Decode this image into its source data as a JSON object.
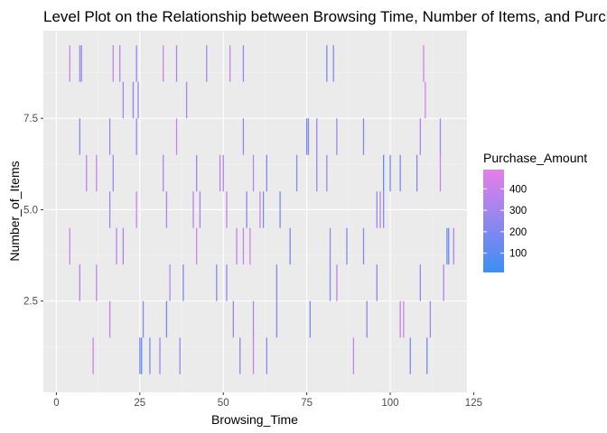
{
  "chart_data": {
    "type": "heatmap",
    "title": "Level Plot on the Relationship between Browsing Time, Number of Items, and Purchase Amount",
    "xlabel": "Browsing_Time",
    "ylabel": "Number_of_Items",
    "xlim": [
      -3.9,
      123
    ],
    "ylim": [
      0,
      9.9
    ],
    "xticks": [
      0,
      25,
      50,
      75,
      100,
      125
    ],
    "xtick_labels": [
      "0",
      "25",
      "50",
      "75",
      "100",
      "125"
    ],
    "yticks": [
      2.5,
      5.0,
      7.5
    ],
    "ytick_labels": [
      "2.5",
      "5.0",
      "7.5"
    ],
    "grid": true,
    "legend": {
      "title": "Purchase_Amount",
      "position": "right",
      "range": [
        10,
        490
      ],
      "ticks": [
        100,
        200,
        300,
        400
      ],
      "tick_labels": [
        "100",
        "200",
        "300",
        "400"
      ],
      "color_low": "#3b8ff5",
      "color_high": "#e67fe8"
    },
    "colors": {
      "panel_background": "#ebebeb",
      "grid_major": "#ffffff",
      "grid_minor": "#f3f3f3",
      "tick_text": "#4d4d4d"
    },
    "points": [
      [
        4,
        9,
        420
      ],
      [
        7,
        9,
        330
      ],
      [
        7.5,
        9,
        200
      ],
      [
        17,
        9,
        390
      ],
      [
        19,
        9,
        350
      ],
      [
        24,
        9,
        250
      ],
      [
        32,
        9,
        420
      ],
      [
        36,
        9,
        310
      ],
      [
        45,
        9,
        320
      ],
      [
        52,
        9,
        410
      ],
      [
        56,
        9,
        270
      ],
      [
        81,
        9,
        180
      ],
      [
        83,
        9,
        210
      ],
      [
        110,
        9,
        430
      ],
      [
        20,
        8,
        300
      ],
      [
        23,
        8,
        230
      ],
      [
        24.5,
        8,
        280
      ],
      [
        39,
        8,
        340
      ],
      [
        110.5,
        8,
        460
      ],
      [
        7,
        7,
        210
      ],
      [
        16,
        7,
        300
      ],
      [
        24,
        7,
        260
      ],
      [
        36,
        7,
        420
      ],
      [
        56,
        7,
        240
      ],
      [
        75,
        7,
        170
      ],
      [
        75.5,
        7,
        230
      ],
      [
        78,
        7,
        280
      ],
      [
        84,
        7,
        300
      ],
      [
        92,
        7,
        190
      ],
      [
        109,
        7,
        330
      ],
      [
        115,
        7,
        300
      ],
      [
        9,
        6,
        380
      ],
      [
        12,
        6,
        390
      ],
      [
        17,
        6,
        280
      ],
      [
        32,
        6,
        330
      ],
      [
        42,
        6,
        300
      ],
      [
        49,
        6,
        350
      ],
      [
        50,
        6,
        340
      ],
      [
        59,
        6,
        370
      ],
      [
        63,
        6,
        180
      ],
      [
        72,
        6,
        220
      ],
      [
        78,
        6,
        260
      ],
      [
        81,
        6,
        300
      ],
      [
        98,
        6,
        100
      ],
      [
        100,
        6,
        200
      ],
      [
        103,
        6,
        180
      ],
      [
        108,
        6,
        200
      ],
      [
        115,
        6,
        420
      ],
      [
        16,
        5,
        300
      ],
      [
        24,
        5,
        410
      ],
      [
        33,
        5,
        320
      ],
      [
        41,
        5,
        370
      ],
      [
        43,
        5,
        300
      ],
      [
        51,
        5,
        380
      ],
      [
        57,
        5,
        220
      ],
      [
        61,
        5,
        410
      ],
      [
        62,
        5,
        200
      ],
      [
        67,
        5,
        190
      ],
      [
        96,
        5,
        260
      ],
      [
        97,
        5,
        350
      ],
      [
        98,
        5,
        230
      ],
      [
        4,
        4,
        420
      ],
      [
        18,
        4,
        360
      ],
      [
        20,
        4,
        300
      ],
      [
        42,
        4,
        410
      ],
      [
        54,
        4,
        380
      ],
      [
        56,
        4,
        410
      ],
      [
        58,
        4,
        430
      ],
      [
        70,
        4,
        180
      ],
      [
        82,
        4,
        260
      ],
      [
        87,
        4,
        200
      ],
      [
        92,
        4,
        220
      ],
      [
        117,
        4,
        120
      ],
      [
        117.5,
        4,
        160
      ],
      [
        119,
        4,
        320
      ],
      [
        7,
        3,
        310
      ],
      [
        12,
        3,
        370
      ],
      [
        34,
        3,
        360
      ],
      [
        38,
        3,
        200
      ],
      [
        48,
        3,
        200
      ],
      [
        51,
        3,
        260
      ],
      [
        66,
        3,
        230
      ],
      [
        82,
        3,
        210
      ],
      [
        84,
        3,
        360
      ],
      [
        96,
        3,
        230
      ],
      [
        109,
        3,
        260
      ],
      [
        116,
        3,
        330
      ],
      [
        16,
        2,
        390
      ],
      [
        26,
        2,
        200
      ],
      [
        33,
        2,
        150
      ],
      [
        53,
        2,
        280
      ],
      [
        59,
        2,
        330
      ],
      [
        66,
        2,
        200
      ],
      [
        76,
        2,
        160
      ],
      [
        93,
        2,
        210
      ],
      [
        103,
        2,
        390
      ],
      [
        104,
        2,
        420
      ],
      [
        112,
        2,
        300
      ],
      [
        11,
        1,
        410
      ],
      [
        25,
        1,
        170
      ],
      [
        25.5,
        1,
        100
      ],
      [
        28,
        1,
        200
      ],
      [
        31,
        1,
        290
      ],
      [
        37,
        1,
        250
      ],
      [
        55,
        1,
        230
      ],
      [
        59,
        1,
        400
      ],
      [
        63,
        1,
        230
      ],
      [
        89,
        1,
        390
      ],
      [
        106,
        1,
        180
      ],
      [
        111,
        1,
        160
      ]
    ]
  }
}
